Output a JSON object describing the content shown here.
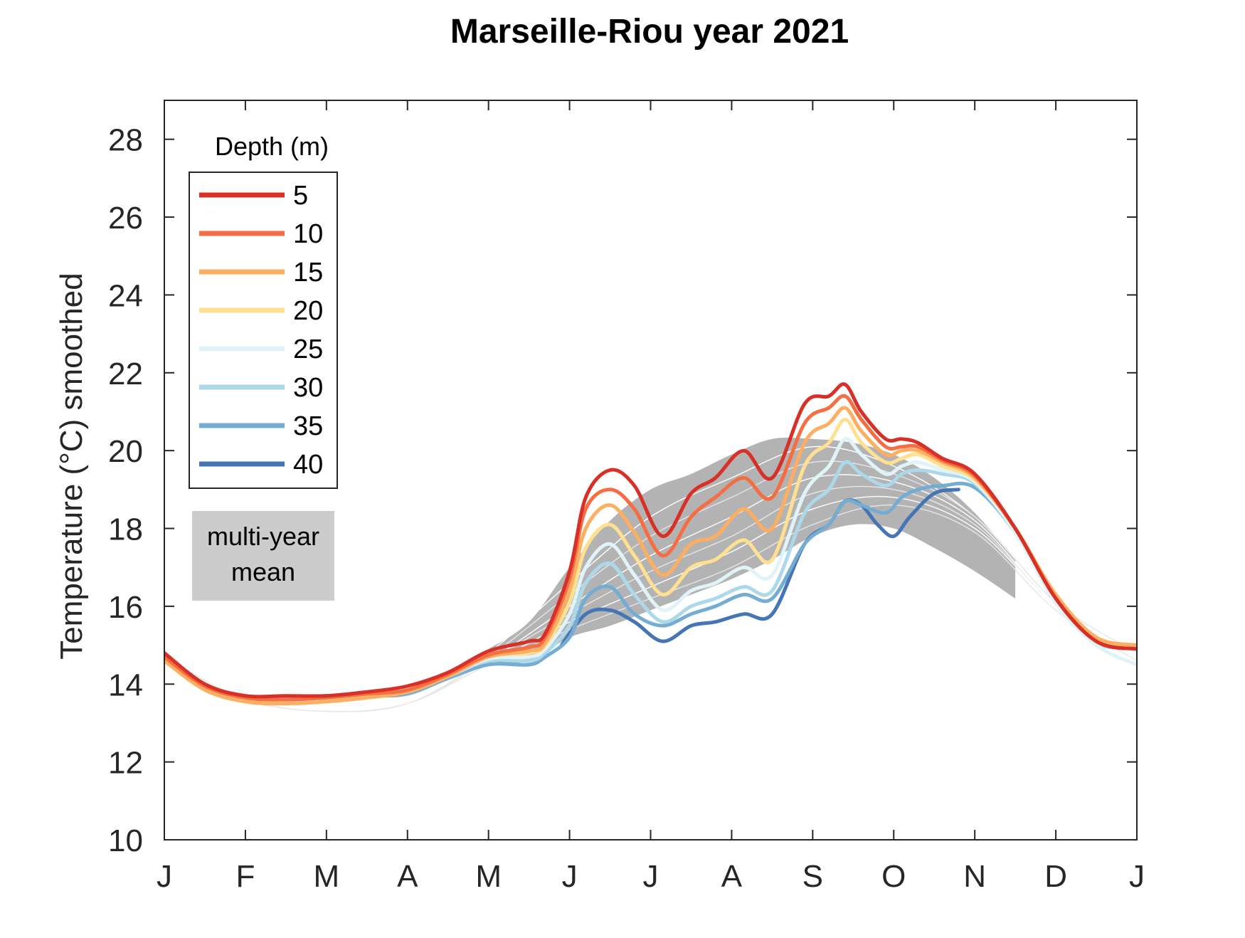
{
  "chart_data": {
    "type": "line",
    "title": "Marseille-Riou year 2021",
    "xlabel": "",
    "ylabel": "Temperature (°C) smoothed",
    "xlim": [
      0,
      12
    ],
    "ylim": [
      10,
      29
    ],
    "yticks": [
      10,
      12,
      14,
      16,
      18,
      20,
      22,
      24,
      26,
      28
    ],
    "xticks": [
      {
        "pos": 0,
        "label": "J"
      },
      {
        "pos": 1,
        "label": "F"
      },
      {
        "pos": 2,
        "label": "M"
      },
      {
        "pos": 3,
        "label": "A"
      },
      {
        "pos": 4,
        "label": "M"
      },
      {
        "pos": 5,
        "label": "J"
      },
      {
        "pos": 6,
        "label": "J"
      },
      {
        "pos": 7,
        "label": "A"
      },
      {
        "pos": 8,
        "label": "S"
      },
      {
        "pos": 9,
        "label": "O"
      },
      {
        "pos": 10,
        "label": "N"
      },
      {
        "pos": 11,
        "label": "D"
      },
      {
        "pos": 12,
        "label": "J"
      }
    ],
    "legend_title": "Depth (m)",
    "legend_position": "top-left",
    "band_label": "multi-year mean",
    "band_label_lines": [
      "multi-year",
      "mean"
    ],
    "band_color": "#b3b3b3",
    "band_label_color": "#cccccc",
    "band": {
      "x": [
        4.0,
        4.5,
        5.0,
        5.5,
        6.0,
        6.5,
        7.0,
        7.5,
        8.0,
        8.5,
        9.0,
        9.5,
        10.0,
        10.5
      ],
      "upper": [
        14.9,
        15.6,
        17.0,
        18.2,
        19.0,
        19.4,
        19.9,
        20.3,
        20.3,
        20.2,
        19.9,
        19.3,
        18.4,
        17.2
      ],
      "lower": [
        14.5,
        14.6,
        15.2,
        15.5,
        15.9,
        16.3,
        16.7,
        17.2,
        17.8,
        18.1,
        18.0,
        17.5,
        16.9,
        16.2
      ]
    },
    "mean_lines": [
      {
        "x": [
          0,
          1,
          2,
          3,
          4,
          5,
          6,
          7,
          8,
          9,
          10,
          11,
          12
        ],
        "values": [
          14.7,
          13.6,
          13.3,
          13.5,
          14.8,
          16.6,
          18.3,
          19.3,
          20.1,
          19.6,
          18.3,
          16.1,
          14.8
        ]
      },
      {
        "x": [
          0,
          1,
          2,
          3,
          4,
          5,
          6,
          7,
          8,
          9,
          10,
          11,
          12
        ],
        "values": [
          14.7,
          13.6,
          13.3,
          13.5,
          14.7,
          16.3,
          17.8,
          18.8,
          19.7,
          19.4,
          18.3,
          16.1,
          14.8
        ]
      },
      {
        "x": [
          0,
          1,
          2,
          3,
          4,
          5,
          6,
          7,
          8,
          9,
          10,
          11,
          12
        ],
        "values": [
          14.6,
          13.6,
          13.3,
          13.5,
          14.6,
          16.0,
          17.3,
          18.3,
          19.3,
          19.2,
          18.2,
          16.0,
          14.7
        ]
      },
      {
        "x": [
          0,
          1,
          2,
          3,
          4,
          5,
          6,
          7,
          8,
          9,
          10,
          11,
          12
        ],
        "values": [
          14.6,
          13.6,
          13.3,
          13.5,
          14.6,
          15.8,
          16.9,
          17.8,
          18.9,
          19.0,
          18.1,
          16.0,
          14.7
        ]
      },
      {
        "x": [
          0,
          1,
          2,
          3,
          4,
          5,
          6,
          7,
          8,
          9,
          10,
          11,
          12
        ],
        "values": [
          14.6,
          13.6,
          13.3,
          13.5,
          14.5,
          15.6,
          16.5,
          17.4,
          18.5,
          18.8,
          18.0,
          16.0,
          14.7
        ]
      },
      {
        "x": [
          0,
          1,
          2,
          3,
          4,
          5,
          6,
          7,
          8,
          9,
          10,
          11,
          12
        ],
        "values": [
          14.6,
          13.6,
          13.3,
          13.5,
          14.5,
          15.4,
          16.2,
          17.0,
          18.1,
          18.6,
          17.9,
          15.9,
          14.6
        ]
      }
    ],
    "series": [
      {
        "name": "5",
        "color": "#d73027",
        "x": [
          0,
          0.5,
          1,
          1.5,
          2,
          2.5,
          3,
          3.5,
          4,
          4.5,
          4.7,
          5.0,
          5.2,
          5.5,
          5.8,
          6.15,
          6.5,
          6.8,
          7.15,
          7.5,
          7.9,
          8.2,
          8.4,
          8.6,
          8.9,
          9.1,
          9.3,
          9.6,
          10.0,
          10.5,
          11.0,
          11.5,
          12.0
        ],
        "values": [
          14.8,
          14.0,
          13.7,
          13.7,
          13.7,
          13.8,
          13.95,
          14.3,
          14.85,
          15.1,
          15.3,
          16.9,
          18.8,
          19.5,
          19.1,
          17.8,
          18.9,
          19.3,
          20.0,
          19.3,
          21.2,
          21.4,
          21.7,
          21.0,
          20.3,
          20.3,
          20.2,
          19.8,
          19.4,
          18.0,
          16.2,
          15.1,
          14.9
        ]
      },
      {
        "name": "10",
        "color": "#f46d43",
        "x": [
          0,
          0.5,
          1,
          1.5,
          2,
          2.5,
          3,
          3.5,
          4,
          4.5,
          4.7,
          5.0,
          5.2,
          5.5,
          5.8,
          6.15,
          6.5,
          6.8,
          7.15,
          7.5,
          7.9,
          8.2,
          8.4,
          8.6,
          8.9,
          9.1,
          9.3,
          9.6,
          10.0,
          10.5,
          11.0,
          11.5,
          12.0
        ],
        "values": [
          14.7,
          13.95,
          13.65,
          13.6,
          13.65,
          13.75,
          13.85,
          14.25,
          14.75,
          14.95,
          15.2,
          16.7,
          18.5,
          19.0,
          18.5,
          17.3,
          18.3,
          18.8,
          19.3,
          18.8,
          20.7,
          21.1,
          21.4,
          20.8,
          20.1,
          20.1,
          20.1,
          19.75,
          19.35,
          18.0,
          16.2,
          15.1,
          14.9
        ]
      },
      {
        "name": "15",
        "color": "#fdae61",
        "x": [
          0,
          0.5,
          1,
          1.5,
          2,
          2.5,
          3,
          3.5,
          4,
          4.5,
          4.7,
          5.0,
          5.2,
          5.5,
          5.8,
          6.15,
          6.5,
          6.8,
          7.15,
          7.5,
          7.9,
          8.2,
          8.4,
          8.6,
          8.9,
          9.1,
          9.3,
          9.6,
          10.0,
          10.5,
          11.0,
          11.5,
          12.0
        ],
        "values": [
          14.6,
          13.85,
          13.55,
          13.5,
          13.55,
          13.65,
          13.8,
          14.2,
          14.7,
          14.85,
          15.05,
          16.4,
          18.0,
          18.6,
          17.9,
          16.8,
          17.6,
          17.8,
          18.5,
          18.0,
          20.2,
          20.7,
          21.1,
          20.5,
          19.9,
          20.0,
          20.0,
          19.7,
          19.3,
          18.0,
          16.3,
          15.2,
          15.0
        ]
      },
      {
        "name": "20",
        "color": "#fee090",
        "x": [
          0,
          0.5,
          1,
          1.5,
          2,
          2.5,
          3,
          3.5,
          4,
          4.5,
          4.7,
          5.0,
          5.2,
          5.5,
          5.8,
          6.15,
          6.5,
          6.8,
          7.15,
          7.5,
          7.9,
          8.2,
          8.4,
          8.6,
          8.9,
          9.1,
          9.3,
          9.6,
          10.0,
          10.5,
          11.0,
          11.5,
          12.0
        ],
        "values": [
          14.65,
          13.9,
          13.6,
          13.6,
          13.65,
          13.7,
          13.8,
          14.2,
          14.7,
          14.8,
          15.0,
          16.1,
          17.5,
          18.1,
          17.3,
          16.3,
          17.0,
          17.2,
          17.7,
          17.2,
          19.6,
          20.2,
          20.8,
          20.2,
          19.7,
          19.8,
          19.9,
          19.6,
          19.25,
          18.0,
          16.2,
          15.1,
          14.95
        ]
      },
      {
        "name": "25",
        "color": "#e0f3f8",
        "x": [
          0,
          0.5,
          1,
          1.5,
          2,
          2.5,
          3,
          3.5,
          4,
          4.5,
          4.7,
          5.0,
          5.2,
          5.5,
          5.8,
          6.15,
          6.5,
          6.8,
          7.15,
          7.5,
          7.9,
          8.2,
          8.4,
          8.6,
          8.9,
          9.1,
          9.3,
          9.6,
          10.0,
          10.5,
          11.0,
          11.5,
          12.0
        ],
        "values": [
          14.65,
          13.9,
          13.65,
          13.6,
          13.65,
          13.7,
          13.8,
          14.2,
          14.65,
          14.7,
          14.9,
          15.8,
          17.0,
          17.6,
          16.8,
          15.9,
          16.4,
          16.6,
          17.0,
          16.8,
          18.9,
          19.6,
          20.3,
          19.9,
          19.4,
          19.6,
          19.7,
          19.5,
          19.2,
          17.9,
          16.1,
          15.0,
          14.5
        ]
      },
      {
        "name": "30",
        "color": "#abd9e9",
        "x": [
          0,
          0.5,
          1,
          1.5,
          2,
          2.5,
          3,
          3.5,
          4,
          4.5,
          4.7,
          5.0,
          5.2,
          5.5,
          5.8,
          6.15,
          6.5,
          6.8,
          7.15,
          7.5,
          7.9,
          8.2,
          8.4,
          8.6,
          8.9,
          9.1,
          9.3,
          9.6,
          10.0,
          10.5,
          11.0,
          11.5,
          12.0
        ],
        "values": [
          14.7,
          13.9,
          13.65,
          13.6,
          13.65,
          13.7,
          13.8,
          14.2,
          14.6,
          14.6,
          14.8,
          15.5,
          16.6,
          17.1,
          16.3,
          15.6,
          16.0,
          16.2,
          16.5,
          16.4,
          18.4,
          19.0,
          19.7,
          19.4,
          19.1,
          19.4,
          19.5,
          19.4,
          19.15,
          17.9,
          16.1,
          15.05,
          14.95
        ]
      },
      {
        "name": "35",
        "color": "#74add1",
        "x": [
          0,
          0.5,
          1,
          1.5,
          2,
          2.5,
          3,
          3.5,
          4,
          4.5,
          4.7,
          5.0,
          5.2,
          5.5,
          5.8,
          6.15,
          6.5,
          6.8,
          7.15,
          7.5,
          7.9,
          8.2,
          8.4,
          8.6,
          8.9,
          9.1,
          9.3,
          9.6,
          10.0,
          10.5,
          11.0,
          11.5,
          12.0
        ],
        "values": [
          14.7,
          13.9,
          13.7,
          13.65,
          13.7,
          13.7,
          13.75,
          14.15,
          14.5,
          14.5,
          14.7,
          15.2,
          16.2,
          16.5,
          15.8,
          15.5,
          15.8,
          16.0,
          16.3,
          16.2,
          17.6,
          18.1,
          18.7,
          18.6,
          18.4,
          18.8,
          19.0,
          19.1,
          19.05,
          17.9,
          16.1,
          15.05,
          14.95
        ]
      },
      {
        "name": "40",
        "color": "#4575b4",
        "x": [
          4.9,
          5.2,
          5.5,
          5.8,
          6.15,
          6.5,
          6.8,
          7.15,
          7.5,
          7.9,
          8.2,
          8.4,
          8.6,
          8.8,
          9.0,
          9.2,
          9.5,
          9.8
        ],
        "values": [
          15.0,
          15.8,
          15.9,
          15.6,
          15.1,
          15.5,
          15.6,
          15.8,
          15.8,
          17.6,
          18.1,
          18.7,
          18.6,
          18.1,
          17.8,
          18.3,
          18.9,
          19.0
        ]
      }
    ]
  }
}
